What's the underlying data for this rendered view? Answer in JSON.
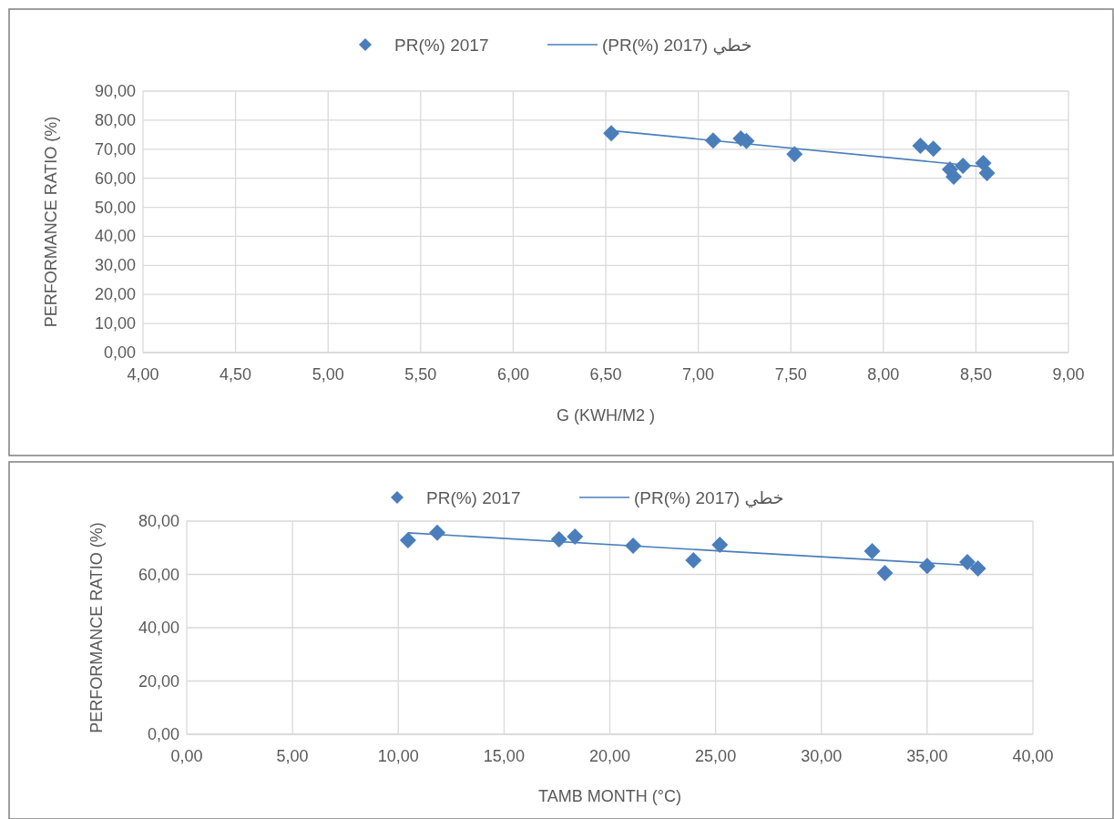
{
  "chart_data": [
    {
      "type": "scatter",
      "xlabel": "G (KWH/M2 )",
      "ylabel": "PERFORMANCE RATIO (%)",
      "xlim": [
        4,
        9
      ],
      "xticks": [
        {
          "value": 4,
          "label": "4,00"
        },
        {
          "value": 4.5,
          "label": "4,50"
        },
        {
          "value": 5,
          "label": "5,00"
        },
        {
          "value": 5.5,
          "label": "5,50"
        },
        {
          "value": 6,
          "label": "6,00"
        },
        {
          "value": 6.5,
          "label": "6,50"
        },
        {
          "value": 7,
          "label": "7,00"
        },
        {
          "value": 7.5,
          "label": "7,50"
        },
        {
          "value": 8,
          "label": "8,00"
        },
        {
          "value": 8.5,
          "label": "8,50"
        },
        {
          "value": 9,
          "label": "9,00"
        }
      ],
      "ylim": [
        0,
        90
      ],
      "yticks": [
        {
          "value": 0,
          "label": "0,00"
        },
        {
          "value": 10,
          "label": "10,00"
        },
        {
          "value": 20,
          "label": "20,00"
        },
        {
          "value": 30,
          "label": "30,00"
        },
        {
          "value": 40,
          "label": "40,00"
        },
        {
          "value": 50,
          "label": "50,00"
        },
        {
          "value": 60,
          "label": "60,00"
        },
        {
          "value": 70,
          "label": "70,00"
        },
        {
          "value": 80,
          "label": "80,00"
        },
        {
          "value": 90,
          "label": "90,00"
        }
      ],
      "grid": true,
      "legend": "top",
      "series": [
        {
          "name": "PR(%) 2017",
          "marker": "diamond",
          "color": "#4a7ebb",
          "x": [
            6.53,
            7.08,
            7.23,
            7.26,
            7.52,
            8.2,
            8.27,
            8.36,
            8.38,
            8.43,
            8.54,
            8.56
          ],
          "values": [
            75.5,
            73,
            73.7,
            72.8,
            68.3,
            71.2,
            70.2,
            63,
            60.5,
            64.3,
            65.2,
            61.8
          ]
        },
        {
          "name": "خطي (PR(%) 2017)",
          "type": "line",
          "marker": "none",
          "color": "#4a7ebb",
          "x": [
            6.53,
            8.56
          ],
          "values": [
            76.4,
            63.8
          ]
        }
      ]
    },
    {
      "type": "scatter",
      "xlabel": "TAMB MONTH (°C)",
      "ylabel": "PERFORMANCE RATIO (%)",
      "xlim": [
        0,
        40
      ],
      "xticks": [
        {
          "value": 0,
          "label": "0,00"
        },
        {
          "value": 5,
          "label": "5,00"
        },
        {
          "value": 10,
          "label": "10,00"
        },
        {
          "value": 15,
          "label": "15,00"
        },
        {
          "value": 20,
          "label": "20,00"
        },
        {
          "value": 25,
          "label": "25,00"
        },
        {
          "value": 30,
          "label": "30,00"
        },
        {
          "value": 35,
          "label": "35,00"
        },
        {
          "value": 40,
          "label": "40,00"
        }
      ],
      "ylim": [
        0,
        80
      ],
      "yticks": [
        {
          "value": 0,
          "label": "0,00"
        },
        {
          "value": 20,
          "label": "20,00"
        },
        {
          "value": 40,
          "label": "40,00"
        },
        {
          "value": 60,
          "label": "60,00"
        },
        {
          "value": 80,
          "label": "80,00"
        }
      ],
      "grid": true,
      "legend": "top",
      "series": [
        {
          "name": "PR(%) 2017",
          "marker": "diamond",
          "color": "#4a7ebb",
          "x": [
            10.46,
            11.84,
            17.6,
            18.35,
            21.1,
            23.95,
            25.2,
            32.4,
            33,
            35,
            36.9,
            37.4
          ],
          "values": [
            72.8,
            75.6,
            73.2,
            74.2,
            70.8,
            65.3,
            71.1,
            68.7,
            60.5,
            63.2,
            64.6,
            62.2
          ]
        },
        {
          "name": "خطي (PR(%) 2017)",
          "type": "line",
          "marker": "none",
          "color": "#4a7ebb",
          "x": [
            10.46,
            37.4
          ],
          "values": [
            75.6,
            63.2
          ]
        }
      ]
    }
  ]
}
